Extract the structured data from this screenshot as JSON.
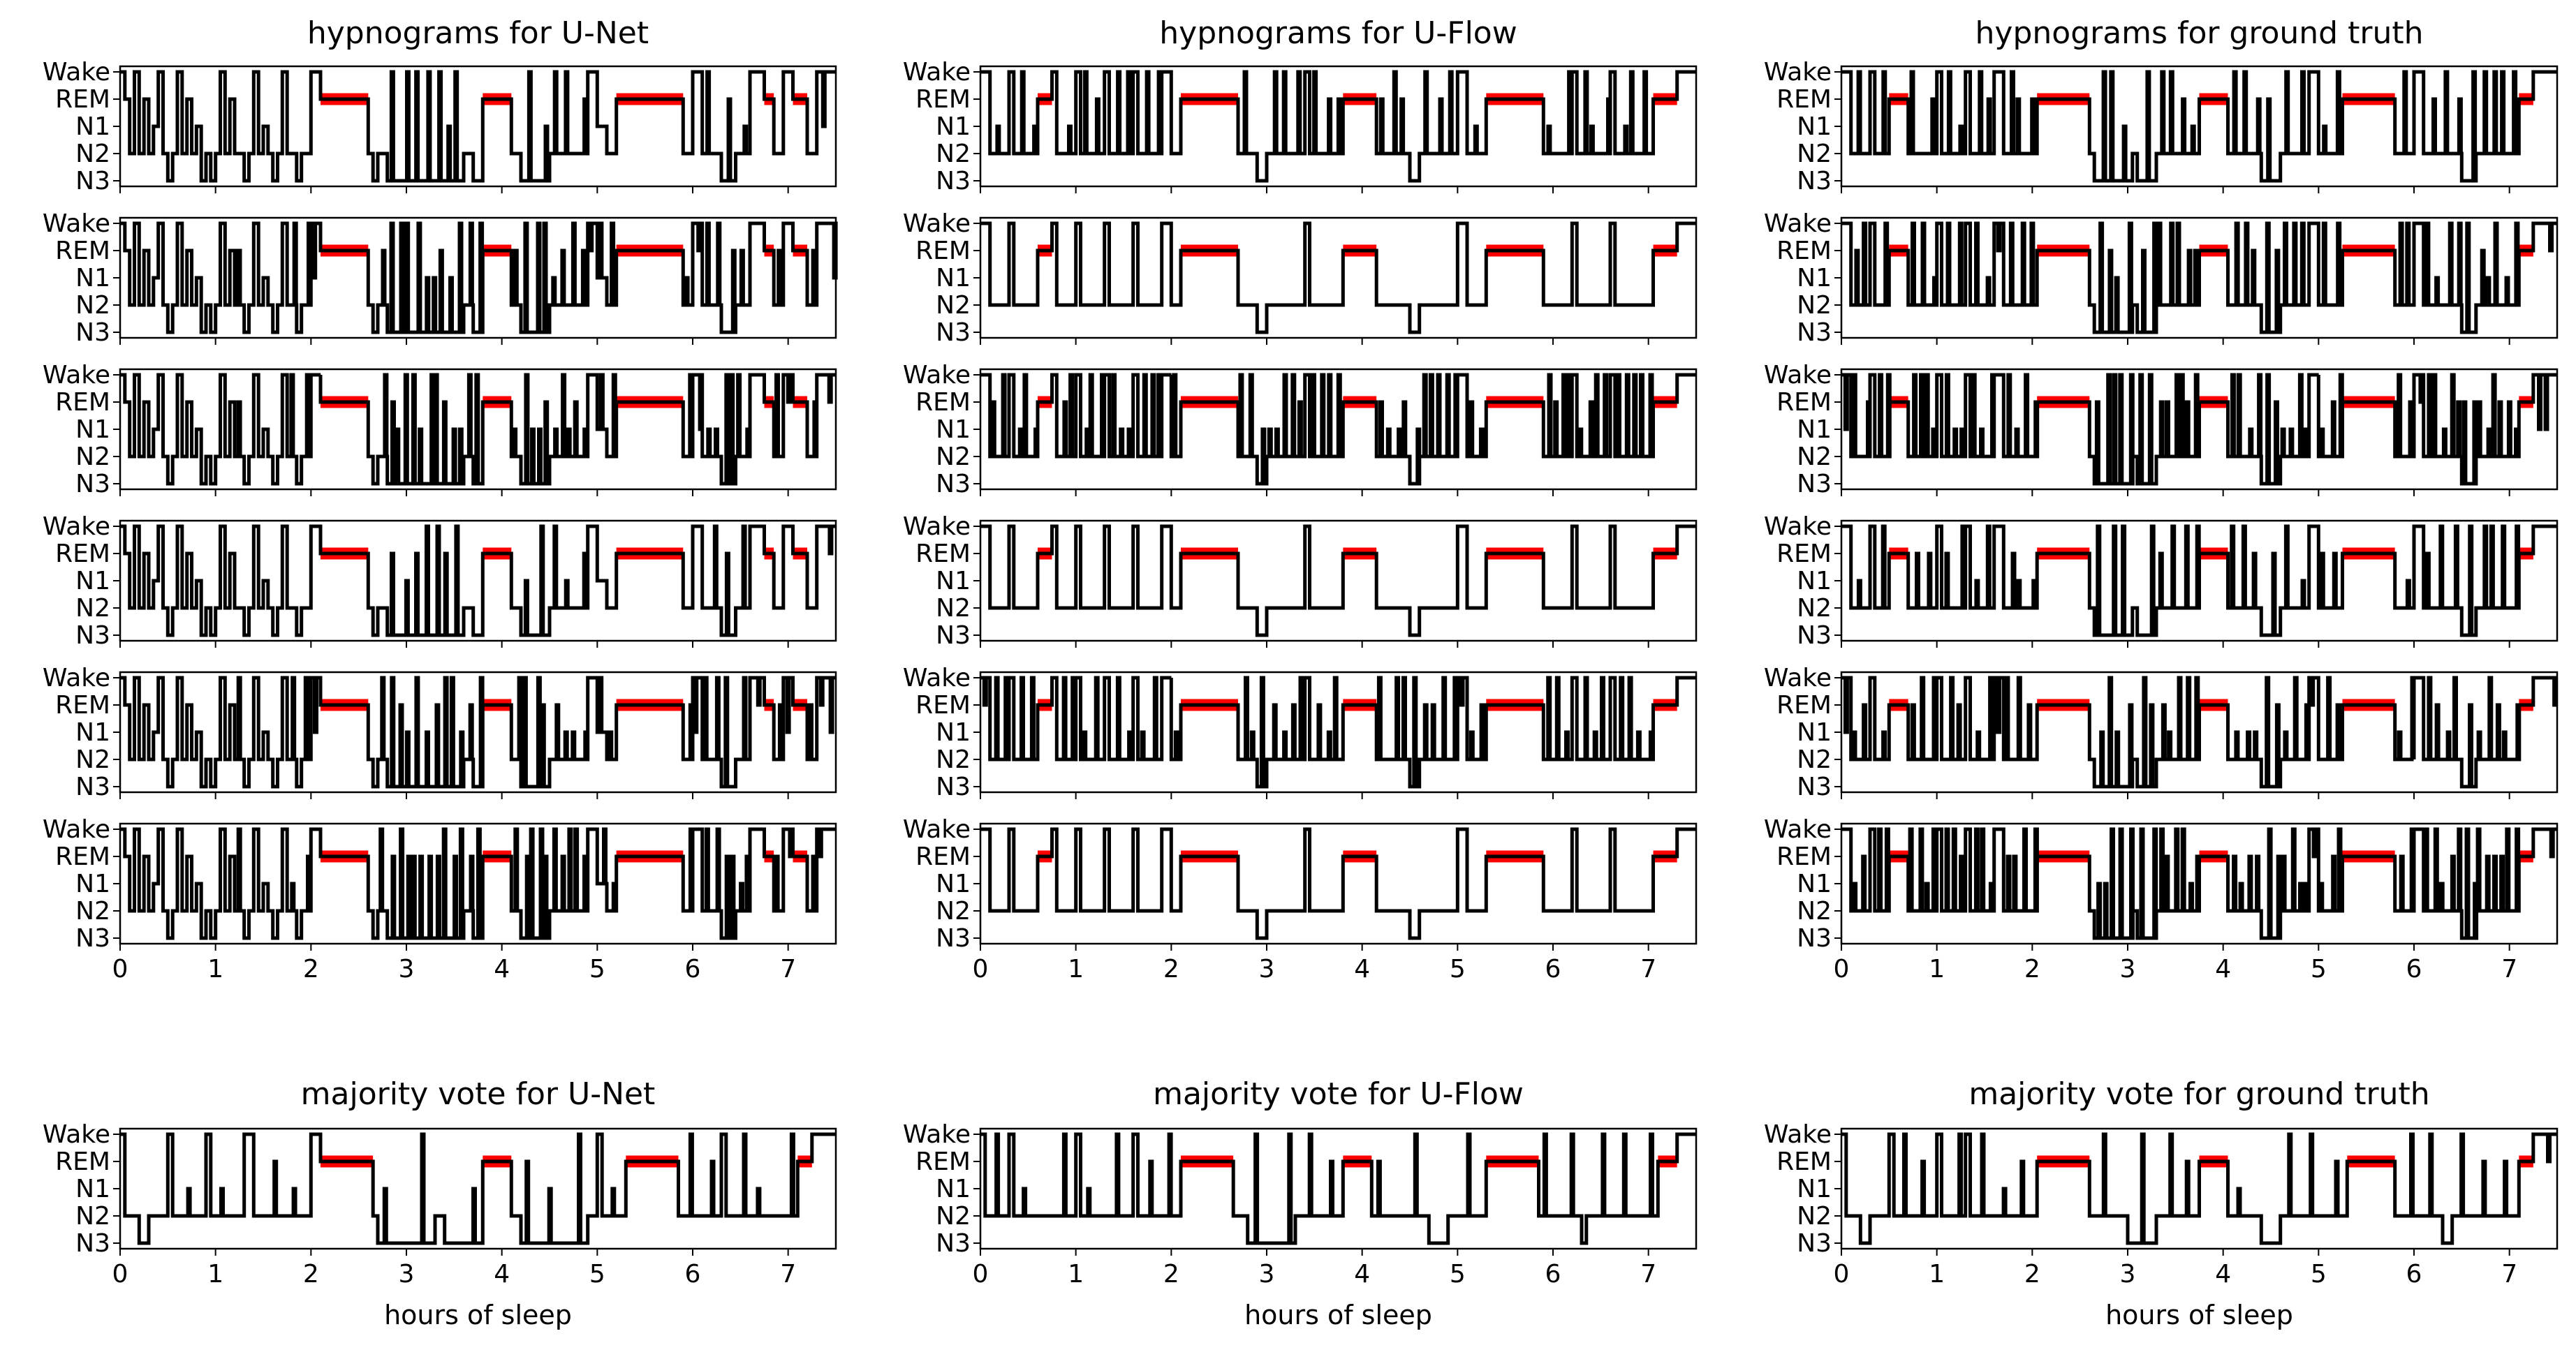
{
  "figure": {
    "columns": [
      "U-Net",
      "U-Flow",
      "ground truth"
    ],
    "row_titles": [
      "hypnograms for U-Net",
      "hypnograms for U-Flow",
      "hypnograms for ground truth"
    ],
    "vote_titles": [
      "majority vote for U-Net",
      "majority vote for U-Flow",
      "majority vote for ground truth"
    ],
    "xlabel": "hours of sleep"
  },
  "chart_data": {
    "type": "line",
    "layout": "6x3 grid of hypnograms plus 1x3 majority vote row",
    "x_unit": "hours of sleep",
    "xlim": [
      0,
      7.5
    ],
    "x_ticks": [
      0,
      1,
      2,
      3,
      4,
      5,
      6,
      7
    ],
    "y_categories": [
      "Wake",
      "REM",
      "N1",
      "N2",
      "N3"
    ],
    "y_encoding": {
      "Wake": 4,
      "REM": 3,
      "N1": 2,
      "N2": 1,
      "N3": 0
    },
    "colors": {
      "stage_line": "#000000",
      "rem_highlight": "#ff0000"
    },
    "panels": [
      {
        "column": "U-Net",
        "title": "hypnograms for U-Net",
        "rem_segments": [
          [
            2.1,
            2.6
          ],
          [
            3.8,
            4.1
          ],
          [
            5.2,
            5.9
          ],
          [
            6.75,
            6.85
          ],
          [
            7.05,
            7.2
          ]
        ],
        "stages": [
          [
            0,
            4
          ],
          [
            0.05,
            3
          ],
          [
            0.1,
            1
          ],
          [
            0.15,
            4
          ],
          [
            0.2,
            1
          ],
          [
            0.25,
            3
          ],
          [
            0.3,
            1
          ],
          [
            0.35,
            2
          ],
          [
            0.4,
            4
          ],
          [
            0.45,
            1
          ],
          [
            0.5,
            0
          ],
          [
            0.55,
            1
          ],
          [
            0.6,
            4
          ],
          [
            0.65,
            1
          ],
          [
            0.7,
            3
          ],
          [
            0.75,
            1
          ],
          [
            0.8,
            2
          ],
          [
            0.85,
            0
          ],
          [
            0.9,
            1
          ],
          [
            0.95,
            0
          ],
          [
            1.0,
            1
          ],
          [
            1.05,
            4
          ],
          [
            1.1,
            1
          ],
          [
            1.15,
            3
          ],
          [
            1.2,
            1
          ],
          [
            1.3,
            0
          ],
          [
            1.35,
            1
          ],
          [
            1.4,
            4
          ],
          [
            1.45,
            1
          ],
          [
            1.5,
            2
          ],
          [
            1.55,
            1
          ],
          [
            1.6,
            0
          ],
          [
            1.65,
            1
          ],
          [
            1.7,
            4
          ],
          [
            1.75,
            1
          ],
          [
            1.85,
            0
          ],
          [
            1.9,
            1
          ],
          [
            2.0,
            4
          ],
          [
            2.1,
            3
          ],
          [
            2.6,
            1
          ],
          [
            2.65,
            0
          ],
          [
            2.7,
            1
          ],
          [
            2.8,
            0
          ],
          [
            3.6,
            1
          ],
          [
            3.7,
            0
          ],
          [
            3.8,
            3
          ],
          [
            4.1,
            1
          ],
          [
            4.2,
            0
          ],
          [
            4.5,
            1
          ],
          [
            4.9,
            4
          ],
          [
            5.0,
            2
          ],
          [
            5.1,
            1
          ],
          [
            5.2,
            3
          ],
          [
            5.9,
            1
          ],
          [
            6.0,
            4
          ],
          [
            6.1,
            1
          ],
          [
            6.3,
            0
          ],
          [
            6.45,
            1
          ],
          [
            6.6,
            4
          ],
          [
            6.75,
            3
          ],
          [
            6.85,
            1
          ],
          [
            6.95,
            4
          ],
          [
            7.05,
            3
          ],
          [
            7.2,
            1
          ],
          [
            7.3,
            4
          ],
          [
            7.5,
            4
          ]
        ]
      },
      {
        "column": "U-Flow",
        "title": "hypnograms for U-Flow",
        "rem_segments": [
          [
            0.6,
            0.75
          ],
          [
            2.1,
            2.7
          ],
          [
            3.8,
            4.15
          ],
          [
            5.3,
            5.9
          ],
          [
            7.05,
            7.3
          ]
        ],
        "stages": [
          [
            0,
            4
          ],
          [
            0.1,
            1
          ],
          [
            0.3,
            4
          ],
          [
            0.35,
            1
          ],
          [
            0.6,
            3
          ],
          [
            0.75,
            4
          ],
          [
            0.8,
            1
          ],
          [
            1.0,
            4
          ],
          [
            1.05,
            1
          ],
          [
            1.3,
            4
          ],
          [
            1.35,
            1
          ],
          [
            1.6,
            4
          ],
          [
            1.65,
            1
          ],
          [
            1.9,
            4
          ],
          [
            2.0,
            1
          ],
          [
            2.1,
            3
          ],
          [
            2.7,
            1
          ],
          [
            2.9,
            0
          ],
          [
            3.0,
            1
          ],
          [
            3.4,
            4
          ],
          [
            3.45,
            1
          ],
          [
            3.8,
            3
          ],
          [
            4.15,
            1
          ],
          [
            4.5,
            0
          ],
          [
            4.6,
            1
          ],
          [
            5.0,
            4
          ],
          [
            5.1,
            1
          ],
          [
            5.3,
            3
          ],
          [
            5.9,
            1
          ],
          [
            6.2,
            4
          ],
          [
            6.25,
            1
          ],
          [
            6.6,
            4
          ],
          [
            6.65,
            1
          ],
          [
            7.05,
            3
          ],
          [
            7.3,
            4
          ],
          [
            7.5,
            4
          ]
        ]
      },
      {
        "column": "ground truth",
        "title": "hypnograms for ground truth",
        "rem_segments": [
          [
            0.5,
            0.7
          ],
          [
            2.05,
            2.6
          ],
          [
            3.75,
            4.05
          ],
          [
            5.25,
            5.8
          ],
          [
            7.1,
            7.25
          ]
        ],
        "stages": [
          [
            0,
            4
          ],
          [
            0.1,
            1
          ],
          [
            0.3,
            4
          ],
          [
            0.35,
            1
          ],
          [
            0.5,
            3
          ],
          [
            0.7,
            1
          ],
          [
            1.0,
            4
          ],
          [
            1.05,
            1
          ],
          [
            1.3,
            4
          ],
          [
            1.35,
            1
          ],
          [
            1.6,
            4
          ],
          [
            1.7,
            1
          ],
          [
            2.05,
            3
          ],
          [
            2.6,
            1
          ],
          [
            2.65,
            0
          ],
          [
            3.05,
            1
          ],
          [
            3.1,
            0
          ],
          [
            3.3,
            1
          ],
          [
            3.75,
            3
          ],
          [
            4.05,
            1
          ],
          [
            4.4,
            0
          ],
          [
            4.6,
            1
          ],
          [
            4.9,
            4
          ],
          [
            5.0,
            1
          ],
          [
            5.25,
            3
          ],
          [
            5.8,
            1
          ],
          [
            6.0,
            4
          ],
          [
            6.1,
            1
          ],
          [
            6.5,
            0
          ],
          [
            6.65,
            1
          ],
          [
            7.1,
            3
          ],
          [
            7.25,
            4
          ],
          [
            7.5,
            4
          ]
        ]
      }
    ],
    "vote_panels": [
      {
        "column": "U-Net",
        "title": "majority vote for U-Net",
        "rem_segments": [
          [
            2.1,
            2.65
          ],
          [
            3.8,
            4.1
          ],
          [
            5.3,
            5.85
          ],
          [
            7.1,
            7.25
          ]
        ],
        "stages": [
          [
            0,
            4
          ],
          [
            0.05,
            1
          ],
          [
            0.2,
            0
          ],
          [
            0.3,
            1
          ],
          [
            0.5,
            4
          ],
          [
            0.55,
            1
          ],
          [
            0.9,
            4
          ],
          [
            0.95,
            1
          ],
          [
            1.3,
            4
          ],
          [
            1.4,
            1
          ],
          [
            2.0,
            4
          ],
          [
            2.1,
            3
          ],
          [
            2.65,
            1
          ],
          [
            2.7,
            0
          ],
          [
            3.3,
            1
          ],
          [
            3.4,
            0
          ],
          [
            3.8,
            3
          ],
          [
            4.1,
            1
          ],
          [
            4.2,
            0
          ],
          [
            4.9,
            1
          ],
          [
            5.0,
            4
          ],
          [
            5.05,
            1
          ],
          [
            5.3,
            3
          ],
          [
            5.85,
            1
          ],
          [
            6.3,
            4
          ],
          [
            6.35,
            1
          ],
          [
            7.1,
            3
          ],
          [
            7.25,
            4
          ],
          [
            7.5,
            4
          ]
        ]
      },
      {
        "column": "U-Flow",
        "title": "majority vote for U-Flow",
        "rem_segments": [
          [
            2.1,
            2.65
          ],
          [
            3.8,
            4.1
          ],
          [
            5.3,
            5.85
          ],
          [
            7.1,
            7.3
          ]
        ],
        "stages": [
          [
            0,
            4
          ],
          [
            0.05,
            1
          ],
          [
            0.3,
            4
          ],
          [
            0.35,
            1
          ],
          [
            1.0,
            4
          ],
          [
            1.05,
            1
          ],
          [
            1.6,
            4
          ],
          [
            1.65,
            1
          ],
          [
            2.1,
            3
          ],
          [
            2.65,
            1
          ],
          [
            2.8,
            0
          ],
          [
            3.3,
            1
          ],
          [
            3.8,
            3
          ],
          [
            4.1,
            1
          ],
          [
            4.7,
            0
          ],
          [
            4.9,
            1
          ],
          [
            5.3,
            3
          ],
          [
            5.85,
            1
          ],
          [
            6.3,
            0
          ],
          [
            6.35,
            1
          ],
          [
            7.1,
            3
          ],
          [
            7.3,
            4
          ],
          [
            7.5,
            4
          ]
        ]
      },
      {
        "column": "ground truth",
        "title": "majority vote for ground truth",
        "rem_segments": [
          [
            2.05,
            2.6
          ],
          [
            3.75,
            4.05
          ],
          [
            5.3,
            5.8
          ],
          [
            7.1,
            7.25
          ]
        ],
        "stages": [
          [
            0,
            4
          ],
          [
            0.05,
            1
          ],
          [
            0.2,
            0
          ],
          [
            0.3,
            1
          ],
          [
            0.5,
            4
          ],
          [
            0.55,
            1
          ],
          [
            1.0,
            4
          ],
          [
            1.05,
            1
          ],
          [
            1.3,
            4
          ],
          [
            1.35,
            1
          ],
          [
            2.05,
            3
          ],
          [
            2.6,
            1
          ],
          [
            3.0,
            0
          ],
          [
            3.3,
            1
          ],
          [
            3.75,
            3
          ],
          [
            4.05,
            1
          ],
          [
            4.4,
            0
          ],
          [
            4.6,
            1
          ],
          [
            5.3,
            3
          ],
          [
            5.8,
            1
          ],
          [
            6.3,
            0
          ],
          [
            6.4,
            1
          ],
          [
            7.1,
            3
          ],
          [
            7.25,
            4
          ],
          [
            7.5,
            4
          ]
        ]
      }
    ]
  }
}
